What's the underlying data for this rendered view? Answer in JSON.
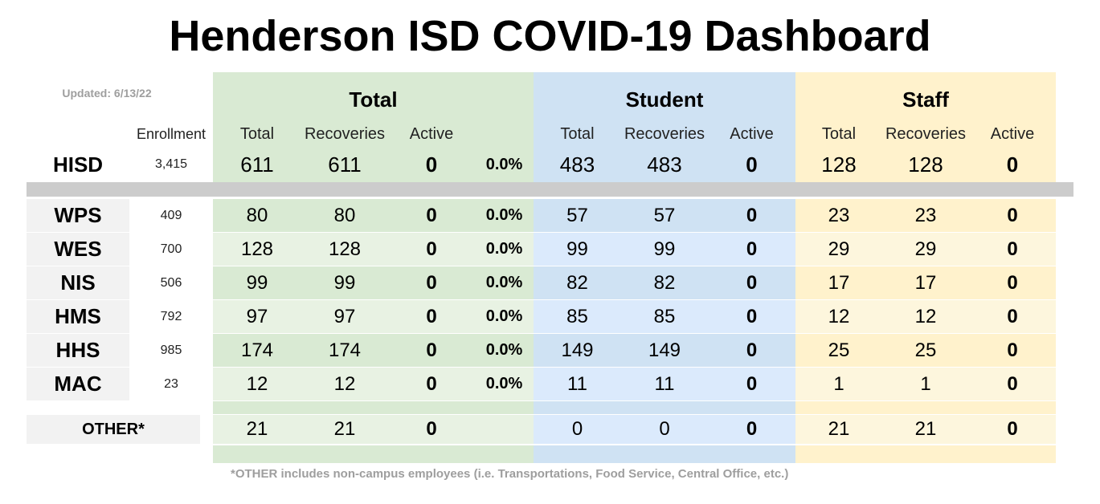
{
  "title": "Henderson ISD COVID-19 Dashboard",
  "updated": "Updated: 6/13/22",
  "groups": {
    "total": "Total",
    "student": "Student",
    "staff": "Staff"
  },
  "subheaders": {
    "enrollment": "Enrollment",
    "total": "Total",
    "recoveries": "Recoveries",
    "active": "Active"
  },
  "summary": {
    "name": "HISD",
    "enrollment": "3,415",
    "total": [
      "611",
      "611",
      "0"
    ],
    "pct": "0.0%",
    "student": [
      "483",
      "483",
      "0"
    ],
    "staff": [
      "128",
      "128",
      "0"
    ]
  },
  "rows": [
    {
      "name": "WPS",
      "enrollment": "409",
      "total": [
        "80",
        "80",
        "0"
      ],
      "pct": "0.0%",
      "student": [
        "57",
        "57",
        "0"
      ],
      "staff": [
        "23",
        "23",
        "0"
      ]
    },
    {
      "name": "WES",
      "enrollment": "700",
      "total": [
        "128",
        "128",
        "0"
      ],
      "pct": "0.0%",
      "student": [
        "99",
        "99",
        "0"
      ],
      "staff": [
        "29",
        "29",
        "0"
      ]
    },
    {
      "name": "NIS",
      "enrollment": "506",
      "total": [
        "99",
        "99",
        "0"
      ],
      "pct": "0.0%",
      "student": [
        "82",
        "82",
        "0"
      ],
      "staff": [
        "17",
        "17",
        "0"
      ]
    },
    {
      "name": "HMS",
      "enrollment": "792",
      "total": [
        "97",
        "97",
        "0"
      ],
      "pct": "0.0%",
      "student": [
        "85",
        "85",
        "0"
      ],
      "staff": [
        "12",
        "12",
        "0"
      ]
    },
    {
      "name": "HHS",
      "enrollment": "985",
      "total": [
        "174",
        "174",
        "0"
      ],
      "pct": "0.0%",
      "student": [
        "149",
        "149",
        "0"
      ],
      "staff": [
        "25",
        "25",
        "0"
      ]
    },
    {
      "name": "MAC",
      "enrollment": "23",
      "total": [
        "12",
        "12",
        "0"
      ],
      "pct": "0.0%",
      "student": [
        "11",
        "11",
        "0"
      ],
      "staff": [
        "1",
        "1",
        "0"
      ]
    }
  ],
  "other": {
    "name": "OTHER*",
    "total": [
      "21",
      "21",
      "0"
    ],
    "student": [
      "0",
      "0",
      "0"
    ],
    "staff": [
      "21",
      "21",
      "0"
    ]
  },
  "footnote": "*OTHER includes non-campus employees (i.e. Transportations, Food Service, Central Office, etc.)",
  "colors": {
    "total_header": "#d9ead3",
    "total_light": "#e8f2e3",
    "total_dark": "#d9ead3",
    "student_header": "#cfe2f3",
    "student_light": "#dbeafc",
    "student_dark": "#cfe2f3",
    "staff_header": "#fff2cc",
    "staff_light": "#fdf6dd",
    "staff_dark": "#fff2cc",
    "name_cell": "#f2f2f2",
    "divider": "#cccccc"
  }
}
